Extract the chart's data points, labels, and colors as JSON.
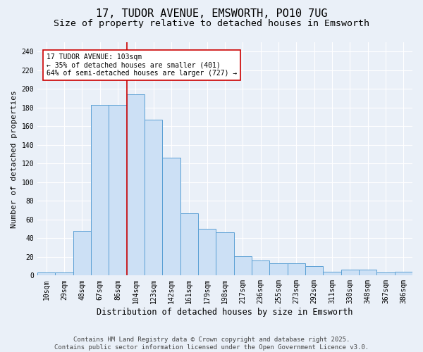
{
  "title1": "17, TUDOR AVENUE, EMSWORTH, PO10 7UG",
  "title2": "Size of property relative to detached houses in Emsworth",
  "xlabel": "Distribution of detached houses by size in Emsworth",
  "ylabel": "Number of detached properties",
  "categories": [
    "10sqm",
    "29sqm",
    "48sqm",
    "67sqm",
    "86sqm",
    "104sqm",
    "123sqm",
    "142sqm",
    "161sqm",
    "179sqm",
    "198sqm",
    "217sqm",
    "236sqm",
    "255sqm",
    "273sqm",
    "292sqm",
    "311sqm",
    "330sqm",
    "348sqm",
    "367sqm",
    "386sqm"
  ],
  "values": [
    3,
    3,
    48,
    183,
    183,
    194,
    167,
    126,
    67,
    50,
    46,
    21,
    16,
    13,
    13,
    10,
    4,
    6,
    6,
    3,
    4
  ],
  "bar_color_fill": "#cce0f5",
  "bar_color_edge": "#5a9fd4",
  "vline_x_index": 5,
  "vline_color": "#cc0000",
  "annotation_text": "17 TUDOR AVENUE: 103sqm\n← 35% of detached houses are smaller (401)\n64% of semi-detached houses are larger (727) →",
  "annotation_box_color": "#ffffff",
  "annotation_box_edge": "#cc0000",
  "ylim": [
    0,
    250
  ],
  "yticks": [
    0,
    20,
    40,
    60,
    80,
    100,
    120,
    140,
    160,
    180,
    200,
    220,
    240
  ],
  "bg_color": "#eaf0f8",
  "grid_color": "#ffffff",
  "footer": "Contains HM Land Registry data © Crown copyright and database right 2025.\nContains public sector information licensed under the Open Government Licence v3.0.",
  "title1_fontsize": 11,
  "title2_fontsize": 9.5,
  "xlabel_fontsize": 8.5,
  "ylabel_fontsize": 8,
  "tick_fontsize": 7,
  "footer_fontsize": 6.5,
  "annot_fontsize": 7
}
